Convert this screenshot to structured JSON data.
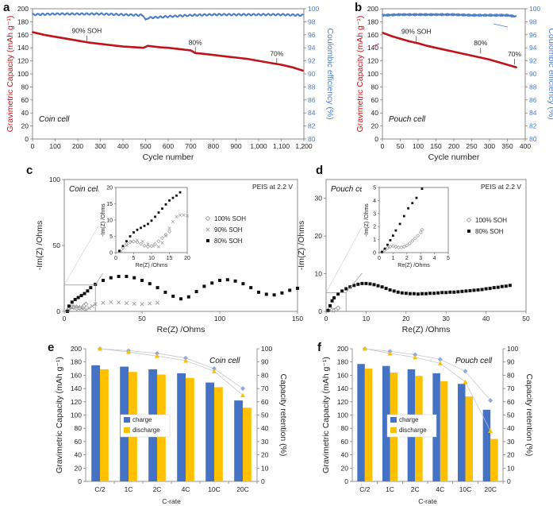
{
  "chart_data": [
    {
      "panel": "a",
      "type": "line",
      "annotation": "Coin cell",
      "xlabel": "Cycle number",
      "ylabel": "Gravimetric Capacity (mAh g⁻¹)",
      "y2label": "Coulombic efficiency (%)",
      "xlim": [
        0,
        1200
      ],
      "ylim": [
        0,
        200
      ],
      "y2lim": [
        80,
        100
      ],
      "xticks": [
        "0",
        "100",
        "200",
        "300",
        "400",
        "500",
        "600",
        "700",
        "800",
        "900",
        "1,000",
        "1,100",
        "1,200"
      ],
      "yticks": [
        "0",
        "20",
        "40",
        "60",
        "80",
        "100",
        "120",
        "140",
        "160",
        "180",
        "200"
      ],
      "y2ticks": [
        "80",
        "82",
        "84",
        "86",
        "88",
        "90",
        "92",
        "94",
        "96",
        "98",
        "100"
      ],
      "soh_labels": [
        {
          "text": "90% SOH",
          "cycle": 240,
          "cap": 148
        },
        {
          "text": "80%",
          "cycle": 720,
          "cap": 130
        },
        {
          "text": "70%",
          "cycle": 1080,
          "cap": 113
        }
      ],
      "series": [
        {
          "name": "capacity",
          "color": "#c0141b",
          "x": [
            1,
            50,
            100,
            150,
            200,
            250,
            300,
            350,
            400,
            450,
            490,
            510,
            560,
            600,
            650,
            700,
            720,
            750,
            800,
            850,
            900,
            950,
            1000,
            1050,
            1100,
            1150,
            1195
          ],
          "y": [
            164,
            160,
            157,
            154,
            151,
            148,
            146,
            144,
            142,
            141,
            140,
            143,
            141,
            140,
            138,
            136,
            132,
            131,
            129,
            127,
            125,
            123,
            120,
            117,
            114,
            110,
            105
          ]
        },
        {
          "name": "coulombic efficiency",
          "color": "#4a7cc7",
          "x": [
            1,
            100,
            200,
            300,
            400,
            490,
            500,
            510,
            600,
            700,
            800,
            900,
            1000,
            1100,
            1195
          ],
          "y": [
            99.1,
            99.2,
            99.2,
            99.2,
            99.1,
            99.0,
            98.2,
            98.6,
            98.8,
            99.0,
            99.1,
            99.1,
            99.1,
            99.1,
            99.0
          ]
        }
      ]
    },
    {
      "panel": "b",
      "type": "line",
      "annotation": "Pouch cell",
      "xlabel": "Cycle number",
      "ylabel": "Gravimetric Capacity (mAh g⁻¹)",
      "y2label": "Coulombic efficiency (%)",
      "xlim": [
        0,
        400
      ],
      "ylim": [
        0,
        200
      ],
      "y2lim": [
        80,
        100
      ],
      "xticks": [
        "0",
        "50",
        "100",
        "150",
        "200",
        "250",
        "300",
        "350",
        "400"
      ],
      "yticks": [
        "0",
        "20",
        "40",
        "60",
        "80",
        "100",
        "120",
        "140",
        "160",
        "180",
        "200"
      ],
      "y2ticks": [
        "80",
        "82",
        "84",
        "86",
        "88",
        "90",
        "92",
        "94",
        "96",
        "98",
        "100"
      ],
      "soh_labels": [
        {
          "text": "90% SOH",
          "cycle": 95,
          "cap": 147
        },
        {
          "text": "80%",
          "cycle": 275,
          "cap": 129
        },
        {
          "text": "70%",
          "cycle": 370,
          "cap": 112
        }
      ],
      "series": [
        {
          "name": "capacity",
          "color": "#c0141b",
          "x": [
            1,
            25,
            50,
            75,
            100,
            125,
            150,
            175,
            200,
            225,
            250,
            275,
            300,
            325,
            350,
            375
          ],
          "y": [
            163,
            158,
            154,
            150,
            147,
            143,
            140,
            137,
            134,
            131,
            128,
            125,
            122,
            118,
            114,
            110
          ]
        },
        {
          "name": "coulombic efficiency",
          "color": "#4a7cc7",
          "x": [
            1,
            50,
            100,
            150,
            200,
            250,
            300,
            350,
            375
          ],
          "y": [
            99.0,
            99.1,
            99.1,
            99.1,
            99.1,
            99.0,
            99.0,
            99.0,
            98.8
          ]
        }
      ]
    },
    {
      "panel": "c",
      "type": "scatter",
      "annotation": "Coin cell",
      "note": "PEIS at 2.2 V",
      "xlabel": "Re(Z) /Ohms",
      "ylabel": "-Im(Z) /Ohms",
      "xlim": [
        0,
        150
      ],
      "ylim": [
        0,
        100
      ],
      "xticks": [
        "0",
        "50",
        "100",
        "150"
      ],
      "yticks": [
        "0",
        "50",
        "100"
      ],
      "series": [
        {
          "name": "100% SOH",
          "marker": "diamond-open",
          "x": [
            2,
            3,
            4,
            5,
            6,
            8,
            10,
            12,
            13,
            14
          ],
          "y": [
            0.5,
            2,
            3.2,
            3.5,
            3,
            2.2,
            2.4,
            3.5,
            4.5,
            5.5
          ]
        },
        {
          "name": "90% SOH",
          "marker": "x",
          "x": [
            3,
            5,
            7,
            9,
            11,
            12,
            14,
            16,
            18,
            20,
            25,
            30,
            35,
            40,
            45,
            50,
            55,
            60
          ],
          "y": [
            1,
            3,
            3.8,
            3.5,
            2.5,
            1.8,
            1.2,
            2.5,
            4,
            5.5,
            6.5,
            7,
            6.8,
            6.3,
            5.8,
            5.5,
            6,
            6.5
          ]
        },
        {
          "name": "80% SOH",
          "marker": "square",
          "x": [
            2,
            3,
            5,
            7,
            9,
            11,
            13,
            15,
            17,
            20,
            25,
            30,
            35,
            40,
            45,
            50,
            55,
            60,
            65,
            70,
            75,
            80,
            85,
            90,
            95,
            100,
            105,
            110,
            115,
            120,
            125,
            130,
            135,
            140,
            145,
            150
          ],
          "y": [
            0,
            4,
            7,
            9,
            10.5,
            12,
            13.5,
            15.5,
            18,
            20.5,
            23.5,
            25.5,
            26.5,
            26.5,
            25.5,
            23.5,
            21,
            18,
            14.5,
            11.5,
            9.5,
            11,
            15,
            19,
            21.5,
            23.5,
            24,
            23,
            21,
            18,
            14.5,
            13,
            12.5,
            14,
            16,
            17.5
          ]
        }
      ],
      "inset": {
        "xlim": [
          0,
          20
        ],
        "ylim": [
          0,
          20
        ],
        "xticks": [
          "0",
          "5",
          "10",
          "15",
          "20"
        ],
        "yticks": [
          "0",
          "5",
          "10",
          "15",
          "20"
        ],
        "xlabel": "Re(Z) /Ohms",
        "ylabel": "-Im(Z) /Ohms",
        "series": [
          {
            "name": "100% SOH",
            "x": [
              1,
              2,
              3,
              4,
              5,
              6,
              7,
              8,
              9,
              10,
              11,
              12,
              13,
              14,
              15
            ],
            "y": [
              0.5,
              1.5,
              2.6,
              3.2,
              3.4,
              3.2,
              2.7,
              2.1,
              1.8,
              2,
              2.6,
              3.5,
              4.5,
              5.5,
              6.5
            ]
          },
          {
            "name": "90% SOH",
            "x": [
              1.5,
              3,
              4.5,
              6,
              7.5,
              9,
              10.5,
              12,
              13,
              14,
              15,
              16,
              17,
              18,
              19,
              20
            ],
            "y": [
              0.5,
              2.2,
              3.4,
              3.8,
              3.4,
              2.6,
              2,
              1.8,
              3,
              5.2,
              7.5,
              9.5,
              11,
              11.5,
              11.5,
              11.3
            ]
          },
          {
            "name": "80% SOH",
            "x": [
              1,
              2,
              3,
              4,
              5,
              6,
              7,
              8,
              9,
              10,
              11,
              12,
              13,
              14,
              15,
              16,
              17,
              18
            ],
            "y": [
              0.5,
              2,
              3.5,
              5,
              6.2,
              7,
              7.6,
              8.2,
              8.8,
              9.8,
              11,
              12.3,
              13.5,
              14.8,
              16,
              16.8,
              17.5,
              18.5
            ]
          }
        ]
      }
    },
    {
      "panel": "d",
      "type": "scatter",
      "annotation": "Pouch cell",
      "note": "PEIS at 2.2 V",
      "xlabel": "Re(Z) /Ohms",
      "ylabel": "-Im(Z) /Ohms",
      "xlim": [
        0,
        50
      ],
      "ylim": [
        0,
        35
      ],
      "xticks": [
        "0",
        "10",
        "20",
        "30",
        "40",
        "50"
      ],
      "yticks": [
        "0",
        "10",
        "20",
        "30"
      ],
      "series": [
        {
          "name": "100% SOH",
          "marker": "diamond-open",
          "x": [
            0.5,
            1,
            1.5,
            2,
            2.5,
            3
          ],
          "y": [
            0.3,
            0.6,
            0.4,
            0.3,
            0.5,
            0.9
          ]
        },
        {
          "name": "80% SOH",
          "marker": "square",
          "x": [
            0.5,
            1,
            1.5,
            2,
            3,
            4,
            5,
            6,
            7,
            8,
            9,
            10,
            11,
            12,
            13,
            14,
            15,
            16,
            17,
            18,
            19,
            20,
            21,
            22,
            23,
            24,
            25,
            26,
            27,
            28,
            29,
            30,
            31,
            32,
            33,
            34,
            35,
            36,
            37,
            38,
            39,
            40,
            41,
            42,
            43,
            44,
            45,
            46
          ],
          "y": [
            0.2,
            1.5,
            2.8,
            3.6,
            4.6,
            5.4,
            6,
            6.5,
            6.9,
            7.2,
            7.4,
            7.4,
            7.3,
            7.1,
            6.8,
            6.5,
            6.1,
            5.7,
            5.4,
            5.1,
            4.9,
            4.8,
            4.7,
            4.7,
            4.6,
            4.7,
            4.7,
            4.8,
            4.8,
            4.9,
            5,
            5,
            5.1,
            5.1,
            5.2,
            5.3,
            5.4,
            5.5,
            5.6,
            5.7,
            5.8,
            6,
            6.1,
            6.3,
            6.4,
            6.6,
            6.7,
            6.9
          ]
        }
      ],
      "inset": {
        "xlim": [
          0,
          5
        ],
        "ylim": [
          0,
          5
        ],
        "xticks": [
          "0",
          "1",
          "2",
          "3",
          "4",
          "5"
        ],
        "yticks": [
          "0",
          "1",
          "2",
          "3",
          "4",
          "5"
        ],
        "xlabel": "Re(Z) /Ohms",
        "ylabel": "-Im(Z) /Ohms",
        "series": [
          {
            "name": "100% SOH",
            "x": [
              0.2,
              0.4,
              0.6,
              0.8,
              1,
              1.2,
              1.4,
              1.6,
              1.8,
              2,
              2.2,
              2.4,
              2.6,
              2.8,
              3,
              3.1
            ],
            "y": [
              0.05,
              0.2,
              0.35,
              0.45,
              0.5,
              0.45,
              0.4,
              0.4,
              0.45,
              0.55,
              0.7,
              0.9,
              1.1,
              1.3,
              1.55,
              1.75
            ]
          },
          {
            "name": "80% SOH",
            "x": [
              0.2,
              0.4,
              0.6,
              0.8,
              1,
              1.2,
              1.5,
              1.8,
              2.1,
              2.4,
              2.7,
              3.1
            ],
            "y": [
              0.05,
              0.3,
              0.6,
              0.95,
              1.3,
              1.7,
              2.2,
              2.8,
              3.4,
              3.8,
              4.2,
              4.9
            ]
          }
        ]
      }
    },
    {
      "panel": "e",
      "type": "bar",
      "annotation": "Coin cell",
      "xlabel": "C-rate",
      "ylabel": "Gravimetric Capacity (mAh g⁻¹)",
      "y2label": "Capacity retention (%)",
      "categories": [
        "C/2",
        "1C",
        "2C",
        "4C",
        "10C",
        "20C"
      ],
      "ylim": [
        0,
        200
      ],
      "y2lim": [
        0,
        100
      ],
      "yticks": [
        "0",
        "20",
        "40",
        "60",
        "80",
        "100",
        "120",
        "140",
        "160",
        "180",
        "200"
      ],
      "y2ticks": [
        "0",
        "10",
        "20",
        "30",
        "40",
        "50",
        "60",
        "70",
        "80",
        "90",
        "100"
      ],
      "series": [
        {
          "name": "charge",
          "color": "#4472c4",
          "values": [
            175,
            173,
            169,
            163,
            149,
            122
          ]
        },
        {
          "name": "discharge",
          "color": "#ffc000",
          "values": [
            169,
            165,
            161,
            156,
            142,
            111
          ]
        }
      ],
      "retention": [
        {
          "name": "charge retention",
          "values": [
            100,
            98.5,
            96.5,
            93,
            85,
            70
          ]
        },
        {
          "name": "discharge retention",
          "values": [
            100,
            97.5,
            94.5,
            91,
            83,
            65
          ]
        }
      ]
    },
    {
      "panel": "f",
      "type": "bar",
      "annotation": "Pouch cell",
      "xlabel": "C-rate",
      "ylabel": "Gravimetric Capacity (mAh g⁻¹)",
      "y2label": "Capacity retention (%)",
      "categories": [
        "C/2",
        "1C",
        "2C",
        "4C",
        "10C",
        "20C"
      ],
      "ylim": [
        0,
        200
      ],
      "y2lim": [
        0,
        100
      ],
      "yticks": [
        "0",
        "20",
        "40",
        "60",
        "80",
        "100",
        "120",
        "140",
        "160",
        "180",
        "200"
      ],
      "y2ticks": [
        "0",
        "10",
        "20",
        "30",
        "40",
        "50",
        "60",
        "70",
        "80",
        "90",
        "100"
      ],
      "series": [
        {
          "name": "charge",
          "color": "#4472c4",
          "values": [
            177,
            174,
            169,
            163,
            147,
            108
          ]
        },
        {
          "name": "discharge",
          "color": "#ffc000",
          "values": [
            170,
            164,
            159,
            151,
            128,
            64
          ]
        }
      ],
      "retention": [
        {
          "name": "charge retention",
          "values": [
            100,
            98,
            95.5,
            92,
            83,
            61
          ]
        },
        {
          "name": "discharge retention",
          "values": [
            100,
            96.5,
            93.5,
            89,
            75,
            38
          ]
        }
      ]
    }
  ]
}
